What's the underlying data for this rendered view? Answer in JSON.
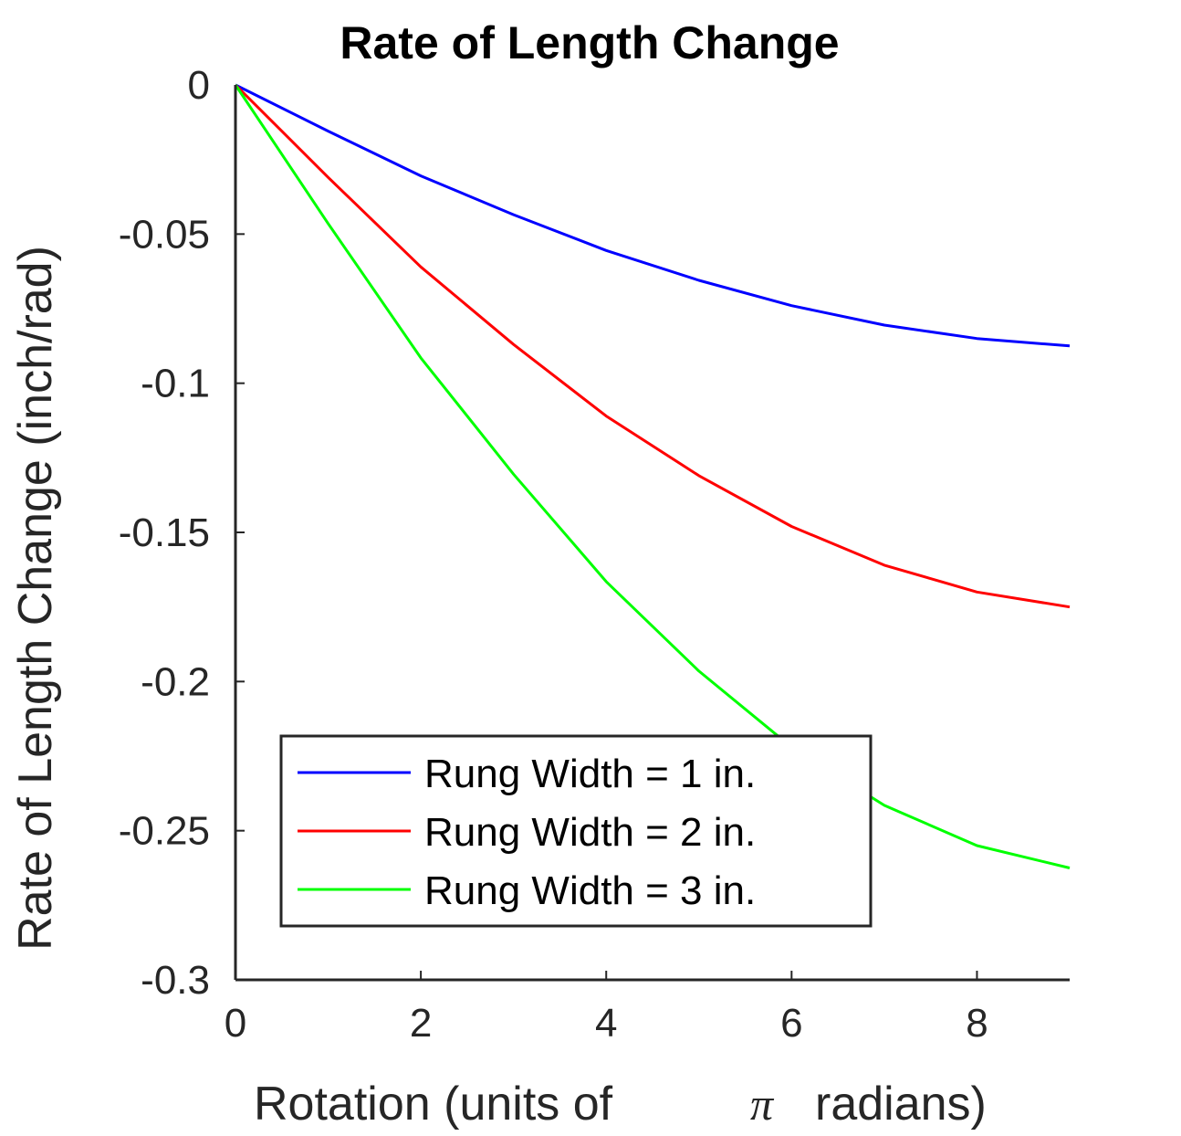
{
  "chart_data": {
    "type": "line",
    "title": "Rate of Length Change",
    "xlabel_main": "Rotation (units of",
    "xlabel_symbol": "π",
    "xlabel_tail": "radians)",
    "ylabel": "Rate of Length Change (inch/rad)",
    "xlim": [
      0,
      9
    ],
    "ylim": [
      -0.3,
      0
    ],
    "xticks": [
      0,
      2,
      4,
      6,
      8
    ],
    "yticks": [
      0,
      -0.05,
      -0.1,
      -0.15,
      -0.2,
      -0.25,
      -0.3
    ],
    "xtick_labels": [
      "0",
      "2",
      "4",
      "6",
      "8"
    ],
    "ytick_labels": [
      "0",
      "-0.05",
      "-0.1",
      "-0.15",
      "-0.2",
      "-0.25",
      "-0.3"
    ],
    "grid": false,
    "legend_position": "bottom-left",
    "series": [
      {
        "name": "Rung Width = 1 in.",
        "color": "#0000ff",
        "x": [
          0,
          1,
          2,
          3,
          4,
          5,
          6,
          7,
          8,
          9
        ],
        "y": [
          0,
          -0.0155,
          -0.0305,
          -0.0435,
          -0.0555,
          -0.0655,
          -0.074,
          -0.0805,
          -0.085,
          -0.0875
        ]
      },
      {
        "name": "Rung Width = 2 in.",
        "color": "#ff0000",
        "x": [
          0,
          1,
          2,
          3,
          4,
          5,
          6,
          7,
          8,
          9
        ],
        "y": [
          0,
          -0.031,
          -0.061,
          -0.087,
          -0.111,
          -0.131,
          -0.148,
          -0.161,
          -0.17,
          -0.175
        ]
      },
      {
        "name": "Rung Width = 3 in.",
        "color": "#00ff00",
        "x": [
          0,
          1,
          2,
          3,
          4,
          5,
          6,
          7,
          8,
          9
        ],
        "y": [
          0,
          -0.0465,
          -0.0915,
          -0.1305,
          -0.1665,
          -0.1965,
          -0.222,
          -0.2415,
          -0.255,
          -0.2625
        ]
      }
    ]
  }
}
